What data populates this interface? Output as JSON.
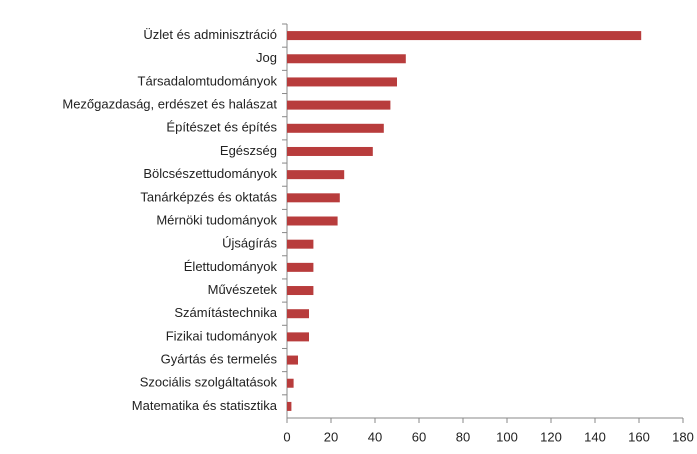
{
  "chart_data": {
    "type": "bar",
    "orientation": "horizontal",
    "categories": [
      "Üzlet és adminisztráció",
      "Jog",
      "Társadalomtudományok",
      "Mezőgazdaság, erdészet és halászat",
      "Építészet és építés",
      "Egészség",
      "Bölcsészettudományok",
      "Tanárképzés és oktatás",
      "Mérnöki tudományok",
      "Újságírás",
      "Élettudományok",
      "Művészetek",
      "Számítástechnika",
      "Fizikai tudományok",
      "Gyártás és termelés",
      "Szociális szolgáltatások",
      "Matematika és statisztika"
    ],
    "values": [
      161,
      54,
      50,
      47,
      44,
      39,
      26,
      24,
      23,
      12,
      12,
      12,
      10,
      10,
      5,
      3,
      2
    ],
    "color": "#b83c3c",
    "xlim": [
      0,
      180
    ],
    "xticks": [
      0,
      20,
      40,
      60,
      80,
      100,
      120,
      140,
      160,
      180
    ]
  }
}
